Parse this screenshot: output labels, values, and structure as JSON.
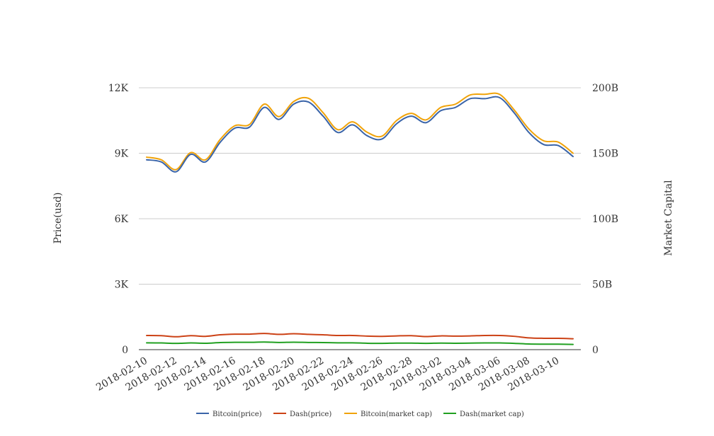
{
  "chart_data": {
    "type": "line",
    "y_left_label": "Price(usd)",
    "y_right_label": "Market Capital",
    "y_left_ticks": [
      "0",
      "3K",
      "6K",
      "9K",
      "12K"
    ],
    "y_left_tick_values": [
      0,
      3000,
      6000,
      9000,
      12000
    ],
    "y_right_ticks": [
      "0",
      "50B",
      "100B",
      "150B",
      "200B"
    ],
    "y_right_tick_values": [
      0,
      50000000000,
      100000000000,
      150000000000,
      200000000000
    ],
    "ylim_left": [
      0,
      12000
    ],
    "ylim_right": [
      0,
      200000000000
    ],
    "grid": true,
    "legend_position": "bottom",
    "x": [
      "2018-02-10",
      "2018-02-11",
      "2018-02-12",
      "2018-02-13",
      "2018-02-14",
      "2018-02-15",
      "2018-02-16",
      "2018-02-17",
      "2018-02-18",
      "2018-02-19",
      "2018-02-20",
      "2018-02-21",
      "2018-02-22",
      "2018-02-23",
      "2018-02-24",
      "2018-02-25",
      "2018-02-26",
      "2018-02-27",
      "2018-02-28",
      "2018-03-01",
      "2018-03-02",
      "2018-03-03",
      "2018-03-04",
      "2018-03-05",
      "2018-03-06",
      "2018-03-07",
      "2018-03-08",
      "2018-03-09",
      "2018-03-10",
      "2018-03-11"
    ],
    "x_tick_labels": [
      "2018-02-10",
      "2018-02-12",
      "2018-02-14",
      "2018-02-16",
      "2018-02-18",
      "2018-02-20",
      "2018-02-22",
      "2018-02-24",
      "2018-02-26",
      "2018-02-28",
      "2018-03-02",
      "2018-03-04",
      "2018-03-06",
      "2018-03-08",
      "2018-03-10"
    ],
    "series": [
      {
        "name": "Bitcoin(price)",
        "axis": "left",
        "color": "#3a64a8",
        "values": [
          8700,
          8600,
          8150,
          8950,
          8600,
          9500,
          10150,
          10200,
          11100,
          10550,
          11250,
          11350,
          10700,
          9950,
          10300,
          9800,
          9650,
          10350,
          10700,
          10400,
          10950,
          11100,
          11500,
          11500,
          11550,
          10850,
          9950,
          9400,
          9350,
          8850
        ]
      },
      {
        "name": "Dash(price)",
        "axis": "left",
        "color": "#cc4216",
        "values": [
          650,
          640,
          590,
          640,
          610,
          680,
          710,
          710,
          740,
          700,
          730,
          700,
          680,
          650,
          650,
          620,
          610,
          630,
          640,
          600,
          630,
          620,
          630,
          650,
          650,
          610,
          540,
          520,
          520,
          500
        ]
      },
      {
        "name": "Bitcoin(market cap)",
        "axis": "right",
        "color": "#f0a30a",
        "values": [
          147000000000,
          145000000000,
          137500000000,
          150500000000,
          145000000000,
          160500000000,
          171000000000,
          172000000000,
          187500000000,
          178000000000,
          189500000000,
          192000000000,
          181000000000,
          168000000000,
          174000000000,
          166000000000,
          163000000000,
          175000000000,
          180500000000,
          175500000000,
          185000000000,
          187500000000,
          194500000000,
          195000000000,
          195000000000,
          183000000000,
          168500000000,
          159500000000,
          158500000000,
          150000000000
        ]
      },
      {
        "name": "Dash(market cap)",
        "axis": "right",
        "color": "#21a021",
        "values": [
          5200000000,
          5100000000,
          4800000000,
          5100000000,
          4900000000,
          5400000000,
          5600000000,
          5600000000,
          5800000000,
          5500000000,
          5700000000,
          5500000000,
          5400000000,
          5200000000,
          5200000000,
          4900000000,
          4800000000,
          5000000000,
          5000000000,
          4800000000,
          5000000000,
          4900000000,
          5000000000,
          5100000000,
          5100000000,
          4800000000,
          4300000000,
          4200000000,
          4200000000,
          4000000000
        ]
      }
    ]
  }
}
